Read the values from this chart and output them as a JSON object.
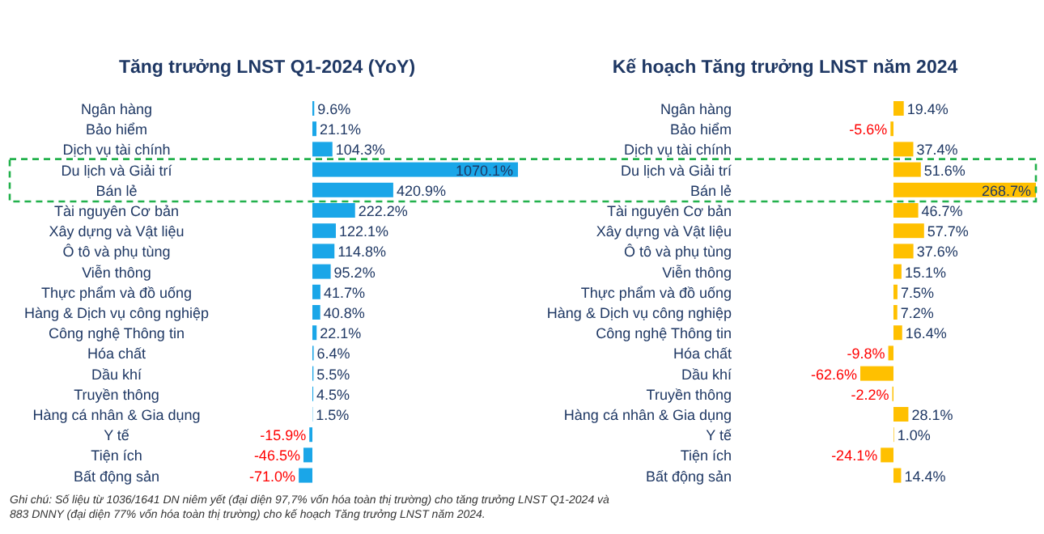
{
  "chart_data": [
    {
      "type": "bar",
      "orientation": "horizontal",
      "title": "Tăng trưởng LNST Q1-2024 (YoY)",
      "categories": [
        "Ngân hàng",
        "Bảo hiểm",
        "Dịch vụ tài chính",
        "Du lịch và Giải trí",
        "Bán lẻ",
        "Tài nguyên Cơ bản",
        "Xây dựng và Vật liệu",
        "Ô tô và phụ tùng",
        "Viễn thông",
        "Thực phẩm và đồ uống",
        "Hàng & Dịch vụ công nghiệp",
        "Công nghệ Thông tin",
        "Hóa chất",
        "Dầu khí",
        "Truyền thông",
        "Hàng cá nhân & Gia dụng",
        "Y tế",
        "Tiện ích",
        "Bất động sản"
      ],
      "values": [
        9.6,
        21.1,
        104.3,
        1070.1,
        420.9,
        222.2,
        122.1,
        114.8,
        95.2,
        41.7,
        40.8,
        22.1,
        6.4,
        5.5,
        4.5,
        1.5,
        -15.9,
        -46.5,
        -71.0
      ],
      "value_labels": [
        "9.6%",
        "21.1%",
        "104.3%",
        "1070.1%",
        "420.9%",
        "222.2%",
        "122.1%",
        "114.8%",
        "95.2%",
        "41.7%",
        "40.8%",
        "22.1%",
        "6.4%",
        "5.5%",
        "4.5%",
        "1.5%",
        "-15.9%",
        "-46.5%",
        "-71.0%"
      ],
      "color": "#1aa6e8"
    },
    {
      "type": "bar",
      "orientation": "horizontal",
      "title": "Kế hoạch Tăng trưởng LNST năm 2024",
      "categories": [
        "Ngân hàng",
        "Bảo hiểm",
        "Dịch vụ tài chính",
        "Du lịch và Giải trí",
        "Bán lẻ",
        "Tài nguyên Cơ bản",
        "Xây dựng và Vật liệu",
        "Ô tô và phụ tùng",
        "Viễn thông",
        "Thực phẩm và đồ uống",
        "Hàng & Dịch vụ công nghiệp",
        "Công nghệ Thông tin",
        "Hóa chất",
        "Dầu khí",
        "Truyền thông",
        "Hàng cá nhân & Gia dụng",
        "Y tế",
        "Tiện ích",
        "Bất động sản"
      ],
      "values": [
        19.4,
        -5.6,
        37.4,
        51.6,
        268.7,
        46.7,
        57.7,
        37.6,
        15.1,
        7.5,
        7.2,
        16.4,
        -9.8,
        -62.6,
        -2.2,
        28.1,
        1.0,
        -24.1,
        14.4
      ],
      "value_labels": [
        "19.4%",
        "-5.6%",
        "37.4%",
        "51.6%",
        "268.7%",
        "46.7%",
        "57.7%",
        "37.6%",
        "15.1%",
        "7.5%",
        "7.2%",
        "16.4%",
        "-9.8%",
        "-62.6%",
        "-2.2%",
        "28.1%",
        "1.0%",
        "-24.1%",
        "14.4%"
      ],
      "color": "#ffc000",
      "annotations": [
        "Ghi chú: Số liệu từ 1036/1641 DN niêm yết (đại diện 97,7% vốn hóa toàn thị trường) cho tăng trưởng LNST Q1-2024 và 883 DNNY (đại diện 77% vốn hóa toàn thị trường) cho kế hoạch Tăng trưởng LNST năm 2024."
      ]
    }
  ]
}
